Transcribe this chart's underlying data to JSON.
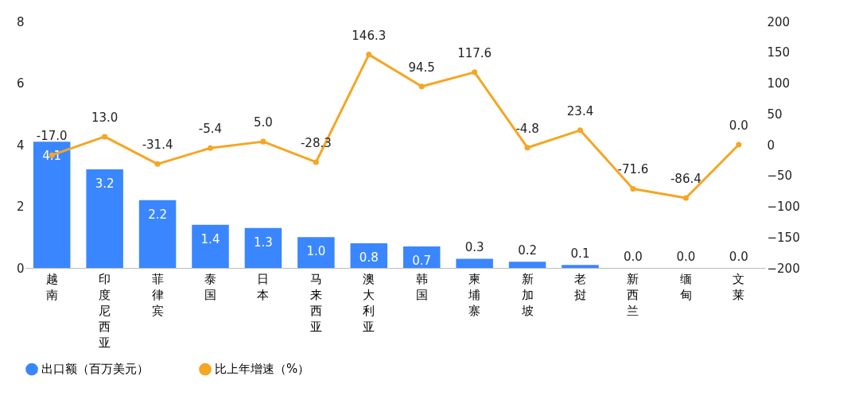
{
  "chart_data": {
    "type": "bar",
    "categories": [
      "越南",
      "印度尼西亚",
      "菲律宾",
      "泰国",
      "日本",
      "马来西亚",
      "澳大利亚",
      "韩国",
      "柬埔寨",
      "新加坡",
      "老挝",
      "新西兰",
      "缅甸",
      "文莱"
    ],
    "series": [
      {
        "name": "出口额（百万美元）",
        "color": "#3a86ff",
        "values": [
          4.1,
          3.2,
          2.2,
          1.4,
          1.3,
          1.0,
          0.8,
          0.7,
          0.3,
          0.2,
          0.1,
          0.0,
          0.0,
          0.0
        ],
        "value_labels": [
          "4.1",
          "3.2",
          "2.2",
          "1.4",
          "1.3",
          "1.0",
          "0.8",
          "0.7",
          "0.3",
          "0.2",
          "0.1",
          "0.0",
          "0.0",
          "0.0"
        ]
      },
      {
        "name": "比上年增速（%）",
        "type": "line",
        "axis": "y2",
        "color": "#f5a623",
        "values": [
          -17.0,
          13.0,
          -31.4,
          -5.4,
          5.0,
          -28.3,
          146.3,
          94.5,
          117.6,
          -4.8,
          23.4,
          -71.6,
          -86.4,
          0.0
        ],
        "value_labels": [
          "-17.0",
          "13.0",
          "-31.4",
          "-5.4",
          "5.0",
          "-28.3",
          "146.3",
          "94.5",
          "117.6",
          "-4.8",
          "23.4",
          "-71.6",
          "-86.4",
          "0.0"
        ]
      }
    ],
    "ylim": [
      0,
      8
    ],
    "yticks": [
      0,
      2,
      4,
      6,
      8
    ],
    "y2lim": [
      -200,
      200
    ],
    "y2ticks": [
      -200,
      -150,
      -100,
      -50,
      0,
      50,
      100,
      150,
      200
    ],
    "legend": "bottom",
    "marker": "circle",
    "grid": false
  }
}
